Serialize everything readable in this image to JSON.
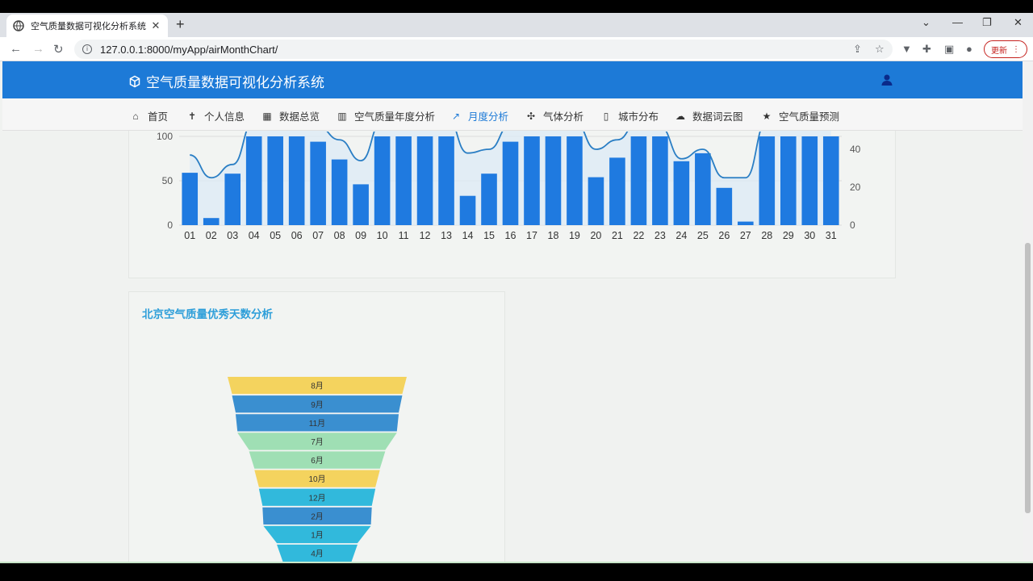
{
  "browser": {
    "tab_title": "空气质量数据可视化分析系统",
    "url": "127.0.0.1:8000/myApp/airMonthChart/",
    "update_label": "更新"
  },
  "app": {
    "brand": "空气质量数据可视化分析系统",
    "nav": [
      {
        "label": "首页",
        "icon": "home-icon"
      },
      {
        "label": "个人信息",
        "icon": "person-icon"
      },
      {
        "label": "数据总览",
        "icon": "table-icon"
      },
      {
        "label": "空气质量年度分析",
        "icon": "bar-chart-icon"
      },
      {
        "label": "月度分析",
        "icon": "line-chart-icon",
        "active": true
      },
      {
        "label": "气体分析",
        "icon": "ac-icon"
      },
      {
        "label": "城市分布",
        "icon": "map-icon"
      },
      {
        "label": "数据词云图",
        "icon": "cloud-icon"
      },
      {
        "label": "空气质量预测",
        "icon": "star-icon"
      }
    ],
    "accent_color": "#1d7ad7"
  },
  "chart_data": [
    {
      "type": "bar",
      "categories": [
        "01",
        "02",
        "03",
        "04",
        "05",
        "06",
        "07",
        "08",
        "09",
        "10",
        "11",
        "12",
        "13",
        "14",
        "15",
        "16",
        "17",
        "18",
        "19",
        "20",
        "21",
        "22",
        "23",
        "24",
        "25",
        "26",
        "27",
        "28",
        "29",
        "30",
        "31"
      ],
      "series": [
        {
          "type": "bar",
          "values": [
            59,
            8,
            58,
            110,
            110,
            110,
            94,
            74,
            46,
            110,
            110,
            110,
            110,
            33,
            58,
            94,
            110,
            110,
            110,
            54,
            76,
            110,
            110,
            72,
            81,
            42,
            4,
            110,
            110,
            110,
            110
          ],
          "color": "#1f7ae0"
        },
        {
          "type": "line",
          "axis": "right",
          "values": [
            37,
            25,
            32,
            55,
            58,
            55,
            52,
            45,
            34,
            55,
            55,
            55,
            58,
            38,
            40,
            53,
            55,
            55,
            55,
            40,
            45,
            55,
            52,
            35,
            40,
            25,
            25,
            55,
            55,
            55,
            55
          ],
          "color": "#2a7ec4"
        }
      ],
      "y_left_ticks": [
        "0",
        "50",
        "100"
      ],
      "y_right_ticks": [
        "0",
        "20",
        "40"
      ],
      "ylim_left": [
        0,
        100
      ],
      "ylim_right": [
        0,
        48
      ]
    },
    {
      "type": "funnel",
      "title": "北京空气质量优秀天数分析",
      "categories": [
        "8月",
        "9月",
        "11月",
        "7月",
        "6月",
        "10月",
        "12月",
        "2月",
        "1月",
        "4月"
      ],
      "values": [
        100,
        95,
        91,
        89,
        76,
        70,
        65,
        61,
        60,
        45
      ],
      "colors": [
        "#f4d35e",
        "#3a8fd0",
        "#3a8fd0",
        "#9fdfb4",
        "#9fdfb4",
        "#f4d35e",
        "#31b9dc",
        "#3a8fd0",
        "#31b9dc",
        "#31b9dc"
      ]
    }
  ]
}
